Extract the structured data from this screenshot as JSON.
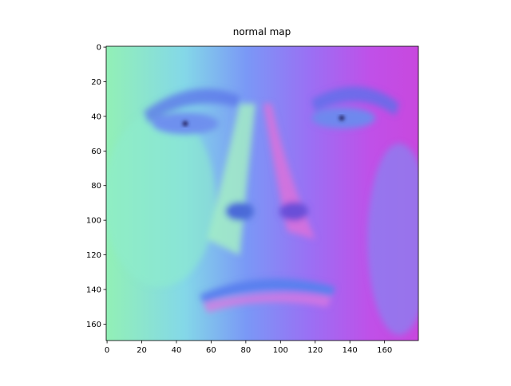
{
  "chart_data": {
    "type": "image",
    "title": "normal map",
    "xlim": [
      -0.5,
      179.5
    ],
    "ylim": [
      169.5,
      -0.5
    ],
    "xticks": [
      0,
      20,
      40,
      60,
      80,
      100,
      120,
      140,
      160
    ],
    "yticks": [
      0,
      20,
      40,
      60,
      80,
      100,
      120,
      140,
      160
    ]
  }
}
